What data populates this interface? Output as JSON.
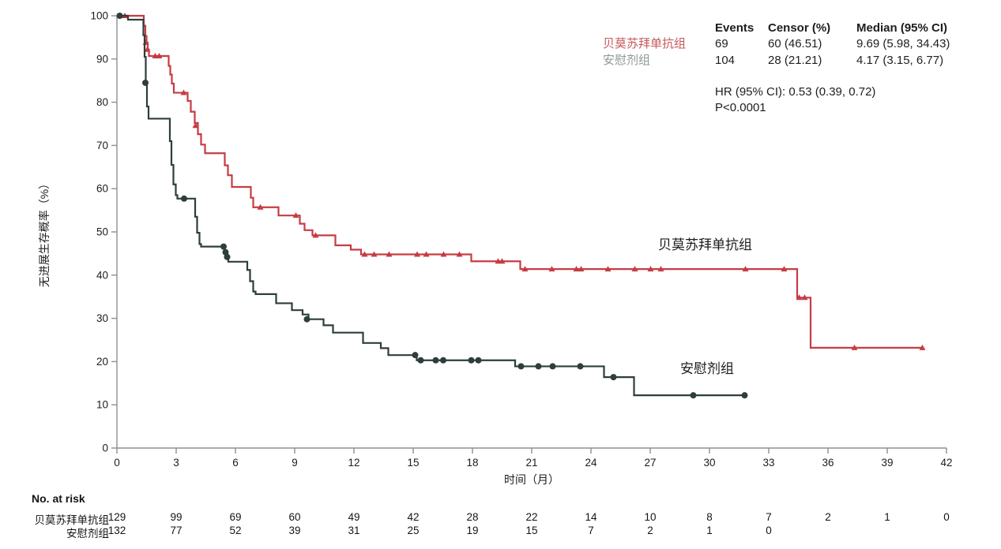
{
  "stats_table": {
    "headers": [
      "Events",
      "Censor (%)",
      "Median (95% CI)"
    ],
    "rows": [
      {
        "label": "贝莫苏拜单抗组",
        "label_color": "#c4595e",
        "events": "69",
        "censor": "60 (46.51)",
        "median": "9.69 (5.98, 34.43)"
      },
      {
        "label": "安慰剂组",
        "label_color": "#8e9899",
        "events": "104",
        "censor": "28 (21.21)",
        "median": "4.17 (3.15, 6.77)"
      }
    ],
    "hr_text": "HR (95% CI): 0.53 (0.39, 0.72)",
    "p_text": "P<0.0001"
  },
  "chart_data": {
    "type": "line",
    "subtype": "kaplan-meier-step",
    "title": "",
    "xlabel": "时间（月）",
    "ylabel": "无进展生存概率（%）",
    "xlim": [
      0,
      42
    ],
    "ylim": [
      0,
      100
    ],
    "x_ticks": [
      0,
      3,
      6,
      9,
      12,
      15,
      18,
      21,
      24,
      27,
      30,
      33,
      36,
      39,
      42
    ],
    "y_ticks": [
      0,
      10,
      20,
      30,
      40,
      50,
      60,
      70,
      80,
      90,
      100
    ],
    "grid": false,
    "axis_color": "#8f8f8f",
    "tick_text_color": "#1c1c1c",
    "series": [
      {
        "name": "贝莫苏拜单抗组",
        "color": "#c63c43",
        "marker": "triangle",
        "steps": [
          [
            0,
            100
          ],
          [
            1.28,
            100
          ],
          [
            1.36,
            97.7
          ],
          [
            1.44,
            95.3
          ],
          [
            1.5,
            93.8
          ],
          [
            1.56,
            92.2
          ],
          [
            1.62,
            90.7
          ],
          [
            2.56,
            90.7
          ],
          [
            2.62,
            88.4
          ],
          [
            2.7,
            86.4
          ],
          [
            2.78,
            84.3
          ],
          [
            2.88,
            82.2
          ],
          [
            3.5,
            82.2
          ],
          [
            3.58,
            80.3
          ],
          [
            3.74,
            77.8
          ],
          [
            3.94,
            75.2
          ],
          [
            4.1,
            72.6
          ],
          [
            4.26,
            70.2
          ],
          [
            4.46,
            68.2
          ],
          [
            5.36,
            68.2
          ],
          [
            5.46,
            65.4
          ],
          [
            5.62,
            63.1
          ],
          [
            5.82,
            60.4
          ],
          [
            6.7,
            60.4
          ],
          [
            6.78,
            57.9
          ],
          [
            6.9,
            55.7
          ],
          [
            8.12,
            55.7
          ],
          [
            8.18,
            53.8
          ],
          [
            9.18,
            53.8
          ],
          [
            9.26,
            51.9
          ],
          [
            9.5,
            50.4
          ],
          [
            9.9,
            49.2
          ],
          [
            11.0,
            49.2
          ],
          [
            11.06,
            46.9
          ],
          [
            11.78,
            46.9
          ],
          [
            11.84,
            45.9
          ],
          [
            12.3,
            45.9
          ],
          [
            12.36,
            44.8
          ],
          [
            17.88,
            44.8
          ],
          [
            17.94,
            43.2
          ],
          [
            20.36,
            43.2
          ],
          [
            20.42,
            41.4
          ],
          [
            34.38,
            41.4
          ],
          [
            34.44,
            34.8
          ],
          [
            35.06,
            34.8
          ],
          [
            35.12,
            23.2
          ],
          [
            40.78,
            23.2
          ]
        ],
        "censors": [
          [
            0.4,
            100
          ],
          [
            1.46,
            93.8
          ],
          [
            1.54,
            92.2
          ],
          [
            1.94,
            90.7
          ],
          [
            2.14,
            90.7
          ],
          [
            3.38,
            82.2
          ],
          [
            3.98,
            74.6
          ],
          [
            7.26,
            55.7
          ],
          [
            9.06,
            53.8
          ],
          [
            10.06,
            49.2
          ],
          [
            12.54,
            44.8
          ],
          [
            13.02,
            44.8
          ],
          [
            13.78,
            44.8
          ],
          [
            15.2,
            44.8
          ],
          [
            15.66,
            44.8
          ],
          [
            16.54,
            44.8
          ],
          [
            17.34,
            44.8
          ],
          [
            19.3,
            43.2
          ],
          [
            19.5,
            43.2
          ],
          [
            20.66,
            41.4
          ],
          [
            22.02,
            41.4
          ],
          [
            23.26,
            41.4
          ],
          [
            23.5,
            41.4
          ],
          [
            24.86,
            41.4
          ],
          [
            26.22,
            41.4
          ],
          [
            27.02,
            41.4
          ],
          [
            27.54,
            41.4
          ],
          [
            31.82,
            41.4
          ],
          [
            33.78,
            41.4
          ],
          [
            34.54,
            34.8
          ],
          [
            34.82,
            34.8
          ],
          [
            37.34,
            23.2
          ],
          [
            40.78,
            23.2
          ]
        ]
      },
      {
        "name": "安慰剂组",
        "color": "#2d3e3c",
        "marker": "circle",
        "steps": [
          [
            0,
            100
          ],
          [
            0.5,
            100
          ],
          [
            0.56,
            99.1
          ],
          [
            1.26,
            99.1
          ],
          [
            1.34,
            95.5
          ],
          [
            1.4,
            90.5
          ],
          [
            1.46,
            84.5
          ],
          [
            1.52,
            79
          ],
          [
            1.6,
            76.2
          ],
          [
            2.6,
            76.2
          ],
          [
            2.68,
            71
          ],
          [
            2.76,
            65.5
          ],
          [
            2.86,
            61
          ],
          [
            2.98,
            58.5
          ],
          [
            3.06,
            57.7
          ],
          [
            3.88,
            57.7
          ],
          [
            3.96,
            53.5
          ],
          [
            4.06,
            49.8
          ],
          [
            4.18,
            47.2
          ],
          [
            4.26,
            46.6
          ],
          [
            5.36,
            46.6
          ],
          [
            5.46,
            45.3
          ],
          [
            5.56,
            44.2
          ],
          [
            5.64,
            43.1
          ],
          [
            6.52,
            43.1
          ],
          [
            6.6,
            41.2
          ],
          [
            6.74,
            38.6
          ],
          [
            6.9,
            36.2
          ],
          [
            7.02,
            35.6
          ],
          [
            7.98,
            35.6
          ],
          [
            8.06,
            33.5
          ],
          [
            8.8,
            33.5
          ],
          [
            8.86,
            31.9
          ],
          [
            9.32,
            31.9
          ],
          [
            9.4,
            30.9
          ],
          [
            9.7,
            29.8
          ],
          [
            10.38,
            29.8
          ],
          [
            10.46,
            28.4
          ],
          [
            10.86,
            28.4
          ],
          [
            10.94,
            26.7
          ],
          [
            12.38,
            26.7
          ],
          [
            12.46,
            24.3
          ],
          [
            13.3,
            24.3
          ],
          [
            13.36,
            23.1
          ],
          [
            13.68,
            23.1
          ],
          [
            13.74,
            21.5
          ],
          [
            15.1,
            21.5
          ],
          [
            15.18,
            20.3
          ],
          [
            20.1,
            20.3
          ],
          [
            20.16,
            18.9
          ],
          [
            24.58,
            18.9
          ],
          [
            24.66,
            16.4
          ],
          [
            26.1,
            16.4
          ],
          [
            26.18,
            12.2
          ],
          [
            31.78,
            12.2
          ]
        ],
        "censors": [
          [
            0.14,
            100
          ],
          [
            1.44,
            84.5
          ],
          [
            3.4,
            57.7
          ],
          [
            5.4,
            46.6
          ],
          [
            5.5,
            45.3
          ],
          [
            5.58,
            44.2
          ],
          [
            9.62,
            29.8
          ],
          [
            15.1,
            21.5
          ],
          [
            15.38,
            20.3
          ],
          [
            16.14,
            20.3
          ],
          [
            16.52,
            20.3
          ],
          [
            17.94,
            20.3
          ],
          [
            18.3,
            20.3
          ],
          [
            20.46,
            18.9
          ],
          [
            21.34,
            18.9
          ],
          [
            22.06,
            18.9
          ],
          [
            23.46,
            18.9
          ],
          [
            25.14,
            16.4
          ],
          [
            29.18,
            12.2
          ],
          [
            31.78,
            12.2
          ]
        ]
      }
    ]
  },
  "risk_table": {
    "title": "No. at risk",
    "rows": [
      {
        "label": "贝莫苏拜单抗组",
        "times": [
          0,
          3,
          6,
          9,
          12,
          15,
          18,
          21,
          24,
          27,
          30,
          33,
          36,
          39,
          42
        ],
        "values": [
          129,
          99,
          69,
          60,
          49,
          42,
          28,
          22,
          14,
          10,
          8,
          7,
          2,
          1,
          0
        ]
      },
      {
        "label": "安慰剂组",
        "times": [
          0,
          3,
          6,
          9,
          12,
          15,
          18,
          21,
          24,
          27,
          30,
          33
        ],
        "values": [
          132,
          77,
          52,
          39,
          31,
          25,
          19,
          15,
          7,
          2,
          1,
          0
        ]
      }
    ]
  }
}
